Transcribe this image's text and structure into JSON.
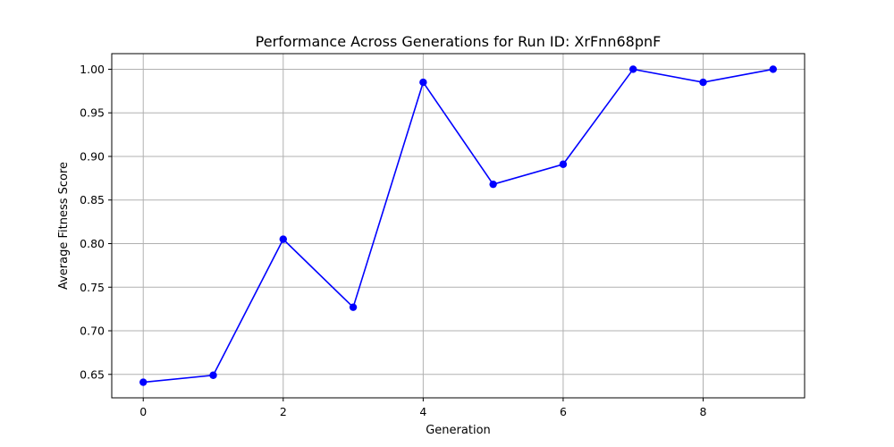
{
  "chart_data": {
    "type": "line",
    "title": "Performance Across Generations for Run ID: XrFnn68pnF",
    "xlabel": "Generation",
    "ylabel": "Average Fitness Score",
    "x": [
      0,
      1,
      2,
      3,
      4,
      5,
      6,
      7,
      8,
      9
    ],
    "series": [
      {
        "values": [
          0.641,
          0.649,
          0.805,
          0.727,
          0.985,
          0.868,
          0.891,
          1.0,
          0.985,
          1.0
        ],
        "color": "#0000ff",
        "marker": "circle"
      }
    ],
    "xlim": [
      -0.45,
      9.45
    ],
    "ylim": [
      0.6231,
      1.0179
    ],
    "xticks": [
      0,
      2,
      4,
      6,
      8
    ],
    "xtick_labels": [
      "0",
      "2",
      "4",
      "6",
      "8"
    ],
    "yticks": [
      0.65,
      0.7,
      0.75,
      0.8,
      0.85,
      0.9,
      0.95,
      1.0
    ],
    "ytick_labels": [
      "0.65",
      "0.70",
      "0.75",
      "0.80",
      "0.85",
      "0.90",
      "0.95",
      "1.00"
    ],
    "grid": true,
    "legend": "none"
  }
}
